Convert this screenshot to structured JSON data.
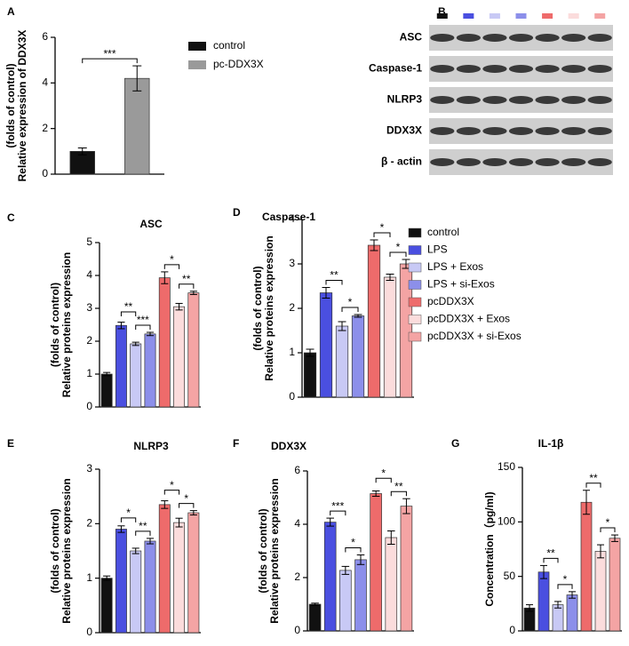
{
  "chart_data": [
    {
      "panel": "A",
      "type": "bar",
      "ylabel": [
        "Relative expression of DDX3X",
        "(folds of control)"
      ],
      "categories": [
        "control",
        "pc-DDX3X"
      ],
      "colors": [
        "#111111",
        "#9a9a9a"
      ],
      "values": [
        1.0,
        4.2
      ],
      "errors": [
        0.15,
        0.55
      ],
      "ylim": [
        0,
        6
      ],
      "yticks": [
        0,
        2,
        4,
        6
      ],
      "sig": [
        {
          "from": 0,
          "to": 1,
          "label": "***"
        }
      ]
    },
    {
      "panel": "B",
      "type": "blot",
      "rows": [
        "ASC",
        "Caspase-1",
        "NLRP3",
        "DDX3X",
        "β - actin"
      ]
    },
    {
      "panel": "C",
      "type": "bar",
      "title": "ASC",
      "ylabel": [
        "Relative proteins expression",
        "(folds of control)"
      ],
      "values": [
        1.0,
        2.48,
        1.92,
        2.22,
        3.93,
        3.05,
        3.47
      ],
      "errors": [
        0.05,
        0.1,
        0.05,
        0.05,
        0.18,
        0.1,
        0.05
      ],
      "ylim": [
        0,
        5
      ],
      "yticks": [
        0,
        1,
        2,
        3,
        4,
        5
      ],
      "sig": [
        {
          "from": 2,
          "to": 3,
          "label": "***"
        },
        {
          "from": 1,
          "to": 2,
          "label": "**"
        },
        {
          "from": 5,
          "to": 6,
          "label": "**"
        },
        {
          "from": 4,
          "to": 5,
          "label": "*"
        }
      ]
    },
    {
      "panel": "D",
      "type": "bar",
      "title": "Caspase-1",
      "ylabel": [
        "Relative proteins expression",
        "(folds of control)"
      ],
      "values": [
        1.0,
        2.35,
        1.6,
        1.83,
        3.42,
        2.7,
        3.0
      ],
      "errors": [
        0.08,
        0.12,
        0.1,
        0.03,
        0.12,
        0.07,
        0.1
      ],
      "ylim": [
        0,
        4
      ],
      "yticks": [
        0,
        1,
        2,
        3,
        4
      ],
      "sig": [
        {
          "from": 2,
          "to": 3,
          "label": "*"
        },
        {
          "from": 1,
          "to": 2,
          "label": "**"
        },
        {
          "from": 5,
          "to": 6,
          "label": "*"
        },
        {
          "from": 4,
          "to": 5,
          "label": "*"
        }
      ]
    },
    {
      "panel": "E",
      "type": "bar",
      "title": "NLRP3",
      "ylabel": [
        "Relative proteins expression",
        "(folds of control)"
      ],
      "values": [
        1.0,
        1.9,
        1.5,
        1.68,
        2.35,
        2.02,
        2.2
      ],
      "errors": [
        0.04,
        0.06,
        0.05,
        0.05,
        0.07,
        0.08,
        0.04
      ],
      "ylim": [
        0,
        3
      ],
      "yticks": [
        0,
        1,
        2,
        3
      ],
      "sig": [
        {
          "from": 2,
          "to": 3,
          "label": "**"
        },
        {
          "from": 1,
          "to": 2,
          "label": "*"
        },
        {
          "from": 5,
          "to": 6,
          "label": "*"
        },
        {
          "from": 4,
          "to": 5,
          "label": "*"
        }
      ]
    },
    {
      "panel": "F",
      "type": "bar",
      "title": "DDX3X",
      "ylabel": [
        "Relative proteins expression",
        "(folds of control)"
      ],
      "values": [
        1.0,
        4.08,
        2.27,
        2.67,
        5.15,
        3.5,
        4.68
      ],
      "errors": [
        0.04,
        0.15,
        0.15,
        0.18,
        0.1,
        0.25,
        0.28
      ],
      "ylim": [
        0,
        6
      ],
      "yticks": [
        0,
        2,
        4,
        6
      ],
      "sig": [
        {
          "from": 2,
          "to": 3,
          "label": "*"
        },
        {
          "from": 1,
          "to": 2,
          "label": "***"
        },
        {
          "from": 5,
          "to": 6,
          "label": "**"
        },
        {
          "from": 4,
          "to": 5,
          "label": "*"
        }
      ]
    },
    {
      "panel": "G",
      "type": "bar",
      "title": "IL-1β",
      "ylabel": [
        "Concentration（pg/ml)"
      ],
      "values": [
        21,
        54,
        24,
        33,
        118,
        73,
        85
      ],
      "errors": [
        3,
        6,
        3,
        3,
        11,
        6,
        3
      ],
      "ylim": [
        0,
        150
      ],
      "yticks": [
        0,
        50,
        100,
        150
      ],
      "sig": [
        {
          "from": 2,
          "to": 3,
          "label": "*"
        },
        {
          "from": 1,
          "to": 2,
          "label": "**"
        },
        {
          "from": 5,
          "to": 6,
          "label": "*"
        },
        {
          "from": 4,
          "to": 5,
          "label": "**"
        }
      ]
    }
  ],
  "legend": {
    "names": [
      "control",
      "LPS",
      "LPS + Exos",
      "LPS + si-Exos",
      "pcDDX3X",
      "pcDDX3X + Exos",
      "pcDDX3X + si-Exos"
    ],
    "colors": [
      "#111111",
      "#4a4fe0",
      "#c8c9f5",
      "#8c8fea",
      "#ee6b6b",
      "#fbdcdc",
      "#f4a4a4"
    ]
  }
}
